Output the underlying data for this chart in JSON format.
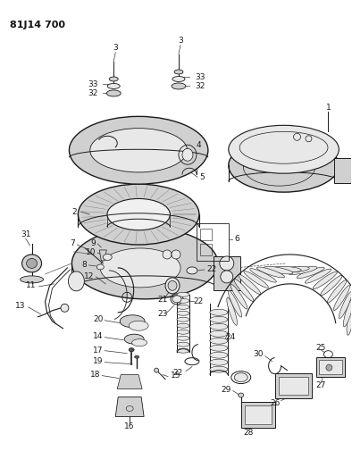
{
  "title": "81J14 700",
  "bg_color": "#ffffff",
  "fig_width": 3.94,
  "fig_height": 5.33,
  "dpi": 100,
  "line_color": "#1a1a1a",
  "fill_light": "#e8e8e8",
  "fill_mid": "#d0d0d0",
  "fill_dark": "#aaaaaa",
  "label_fontsize": 6.5
}
